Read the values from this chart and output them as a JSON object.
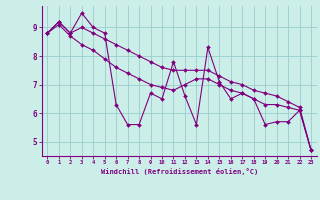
{
  "xlabel": "Windchill (Refroidissement éolien,°C)",
  "background_color": "#cceee8",
  "line_color": "#800080",
  "grid_color": "#99cccc",
  "x_values": [
    0,
    1,
    2,
    3,
    4,
    5,
    6,
    7,
    8,
    9,
    10,
    11,
    12,
    13,
    14,
    15,
    16,
    17,
    18,
    19,
    20,
    21,
    22,
    23
  ],
  "line1": [
    8.8,
    9.2,
    8.8,
    9.5,
    9.0,
    8.8,
    6.3,
    5.6,
    5.6,
    6.7,
    6.5,
    7.8,
    6.6,
    5.6,
    8.3,
    7.1,
    6.5,
    6.7,
    6.5,
    5.6,
    5.7,
    5.7,
    6.1,
    4.7
  ],
  "line2": [
    8.8,
    9.1,
    8.7,
    8.4,
    8.2,
    7.9,
    7.6,
    7.4,
    7.2,
    7.0,
    6.9,
    6.8,
    7.0,
    7.2,
    7.2,
    7.0,
    6.8,
    6.7,
    6.5,
    6.3,
    6.3,
    6.2,
    6.1,
    4.7
  ],
  "line3": [
    8.8,
    9.2,
    8.8,
    9.0,
    8.8,
    8.6,
    8.4,
    8.2,
    8.0,
    7.8,
    7.6,
    7.5,
    7.5,
    7.5,
    7.5,
    7.3,
    7.1,
    7.0,
    6.8,
    6.7,
    6.6,
    6.4,
    6.2,
    4.7
  ],
  "ylim": [
    4.5,
    9.75
  ],
  "yticks": [
    5,
    6,
    7,
    8,
    9
  ],
  "xticks": [
    0,
    1,
    2,
    3,
    4,
    5,
    6,
    7,
    8,
    9,
    10,
    11,
    12,
    13,
    14,
    15,
    16,
    17,
    18,
    19,
    20,
    21,
    22,
    23
  ]
}
